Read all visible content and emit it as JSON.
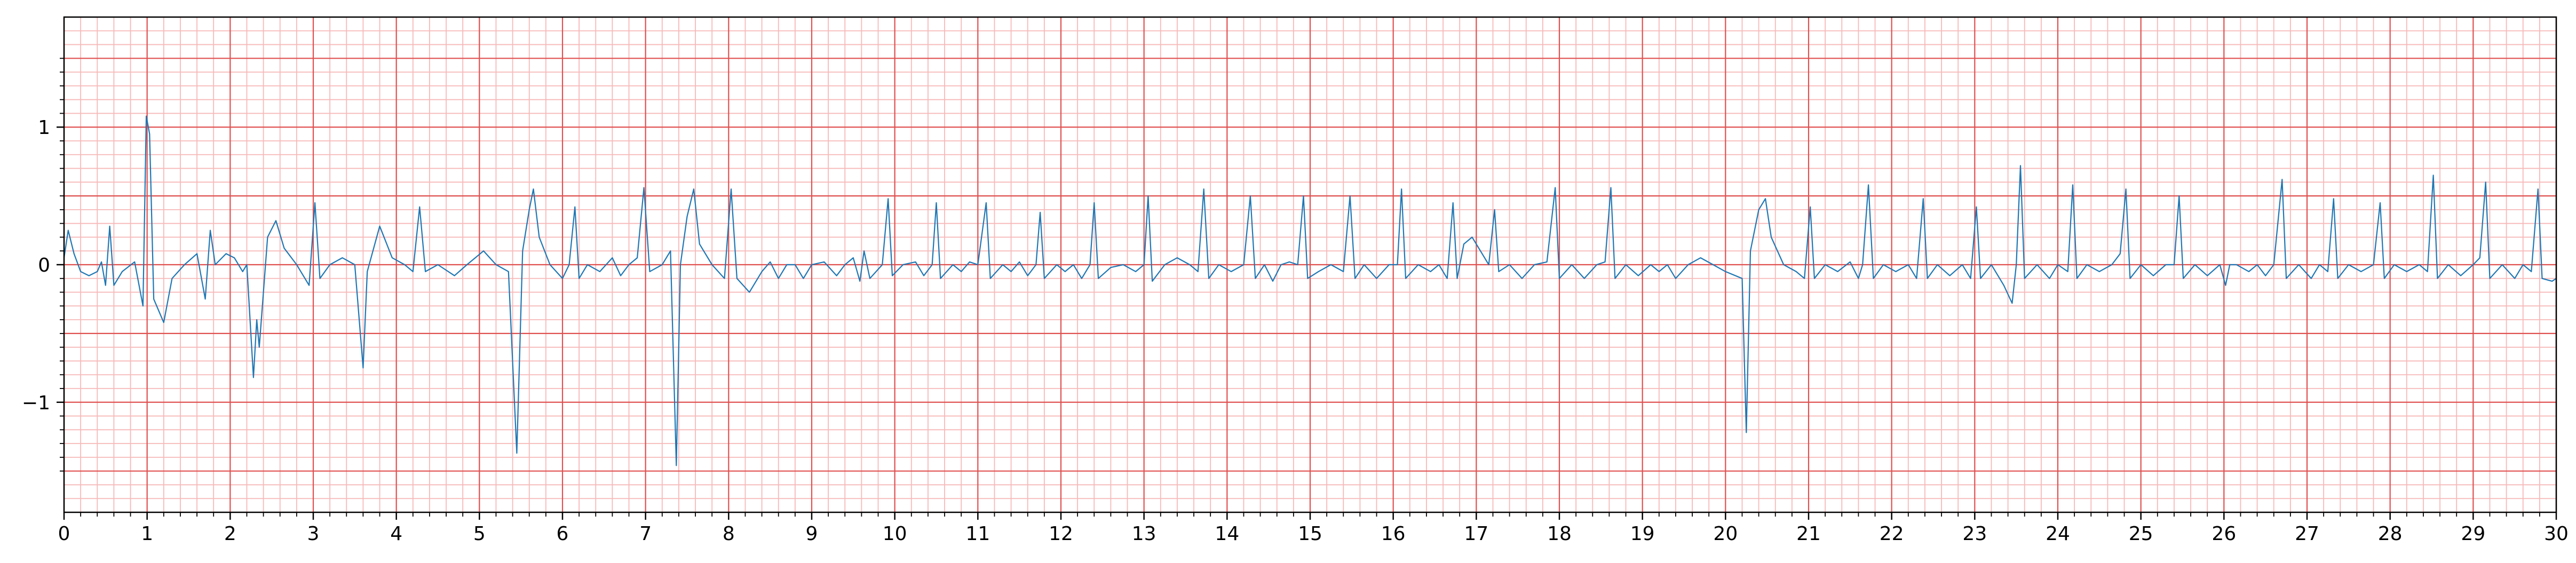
{
  "chart_data": {
    "type": "line",
    "title": "",
    "xlabel": "",
    "ylabel": "",
    "xlim": [
      0,
      30
    ],
    "ylim": [
      -1.8,
      1.8
    ],
    "grid": {
      "major": true,
      "minor": true,
      "major_x_step": 1,
      "minor_x_step": 0.2,
      "major_y_step": 0.5,
      "minor_y_step": 0.1
    },
    "x_ticks": [
      0,
      1,
      2,
      3,
      4,
      5,
      6,
      7,
      8,
      9,
      10,
      11,
      12,
      13,
      14,
      15,
      16,
      17,
      18,
      19,
      20,
      21,
      22,
      23,
      24,
      25,
      26,
      27,
      28,
      29,
      30
    ],
    "x_tick_labels": [
      "0",
      "1",
      "2",
      "3",
      "4",
      "5",
      "6",
      "7",
      "8",
      "9",
      "10",
      "11",
      "12",
      "13",
      "14",
      "15",
      "16",
      "17",
      "18",
      "19",
      "20",
      "21",
      "22",
      "23",
      "24",
      "25",
      "26",
      "27",
      "28",
      "29",
      "30"
    ],
    "y_ticks": [
      -1,
      0,
      1
    ],
    "y_tick_labels": [
      "−1",
      "0",
      "1"
    ],
    "colors": {
      "grid_major": "#e05050",
      "grid_minor": "#f7b8b8",
      "line": "#1f77b4",
      "axes": "#000000"
    },
    "series": [
      {
        "values": [
          [
            0.0,
            0.05
          ],
          [
            0.05,
            0.25
          ],
          [
            0.12,
            0.08
          ],
          [
            0.2,
            -0.05
          ],
          [
            0.3,
            -0.08
          ],
          [
            0.4,
            -0.05
          ],
          [
            0.45,
            0.02
          ],
          [
            0.5,
            -0.15
          ],
          [
            0.55,
            0.28
          ],
          [
            0.6,
            -0.15
          ],
          [
            0.7,
            -0.05
          ],
          [
            0.85,
            0.02
          ],
          [
            0.95,
            -0.3
          ],
          [
            0.99,
            1.08
          ],
          [
            1.03,
            0.95
          ],
          [
            1.08,
            -0.25
          ],
          [
            1.2,
            -0.42
          ],
          [
            1.3,
            -0.1
          ],
          [
            1.45,
            0.0
          ],
          [
            1.6,
            0.08
          ],
          [
            1.7,
            -0.25
          ],
          [
            1.76,
            0.25
          ],
          [
            1.82,
            0.0
          ],
          [
            1.95,
            0.08
          ],
          [
            2.05,
            0.05
          ],
          [
            2.15,
            -0.05
          ],
          [
            2.2,
            0.0
          ],
          [
            2.28,
            -0.82
          ],
          [
            2.32,
            -0.4
          ],
          [
            2.35,
            -0.6
          ],
          [
            2.45,
            0.2
          ],
          [
            2.55,
            0.32
          ],
          [
            2.65,
            0.12
          ],
          [
            2.8,
            0.0
          ],
          [
            2.95,
            -0.15
          ],
          [
            3.02,
            0.45
          ],
          [
            3.08,
            -0.1
          ],
          [
            3.2,
            0.0
          ],
          [
            3.35,
            0.05
          ],
          [
            3.5,
            0.0
          ],
          [
            3.6,
            -0.75
          ],
          [
            3.65,
            -0.05
          ],
          [
            3.8,
            0.28
          ],
          [
            3.95,
            0.05
          ],
          [
            4.1,
            0.0
          ],
          [
            4.2,
            -0.05
          ],
          [
            4.28,
            0.42
          ],
          [
            4.35,
            -0.05
          ],
          [
            4.5,
            0.0
          ],
          [
            4.7,
            -0.08
          ],
          [
            4.85,
            0.0
          ],
          [
            5.05,
            0.1
          ],
          [
            5.2,
            0.0
          ],
          [
            5.35,
            -0.05
          ],
          [
            5.45,
            -1.37
          ],
          [
            5.52,
            0.1
          ],
          [
            5.6,
            0.4
          ],
          [
            5.65,
            0.55
          ],
          [
            5.72,
            0.2
          ],
          [
            5.85,
            0.0
          ],
          [
            6.0,
            -0.1
          ],
          [
            6.08,
            0.0
          ],
          [
            6.15,
            0.42
          ],
          [
            6.2,
            -0.1
          ],
          [
            6.3,
            0.0
          ],
          [
            6.45,
            -0.05
          ],
          [
            6.6,
            0.05
          ],
          [
            6.7,
            -0.08
          ],
          [
            6.8,
            0.0
          ],
          [
            6.9,
            0.05
          ],
          [
            6.98,
            0.56
          ],
          [
            7.05,
            -0.05
          ],
          [
            7.2,
            0.0
          ],
          [
            7.3,
            0.1
          ],
          [
            7.37,
            -1.46
          ],
          [
            7.42,
            0.0
          ],
          [
            7.5,
            0.35
          ],
          [
            7.58,
            0.55
          ],
          [
            7.65,
            0.15
          ],
          [
            7.8,
            0.0
          ],
          [
            7.95,
            -0.1
          ],
          [
            8.03,
            0.55
          ],
          [
            8.1,
            -0.1
          ],
          [
            8.25,
            -0.2
          ],
          [
            8.4,
            -0.05
          ],
          [
            8.5,
            0.02
          ],
          [
            8.6,
            -0.1
          ],
          [
            8.7,
            0.0
          ],
          [
            8.8,
            0.0
          ],
          [
            8.9,
            -0.1
          ],
          [
            9.0,
            0.0
          ],
          [
            9.15,
            0.02
          ],
          [
            9.3,
            -0.08
          ],
          [
            9.4,
            0.0
          ],
          [
            9.5,
            0.05
          ],
          [
            9.58,
            -0.12
          ],
          [
            9.63,
            0.1
          ],
          [
            9.7,
            -0.1
          ],
          [
            9.85,
            0.0
          ],
          [
            9.92,
            0.48
          ],
          [
            9.97,
            -0.08
          ],
          [
            10.1,
            0.0
          ],
          [
            10.25,
            0.02
          ],
          [
            10.35,
            -0.08
          ],
          [
            10.45,
            0.0
          ],
          [
            10.5,
            0.45
          ],
          [
            10.55,
            -0.1
          ],
          [
            10.7,
            0.0
          ],
          [
            10.8,
            -0.05
          ],
          [
            10.9,
            0.02
          ],
          [
            11.0,
            0.0
          ],
          [
            11.1,
            0.45
          ],
          [
            11.15,
            -0.1
          ],
          [
            11.3,
            0.0
          ],
          [
            11.4,
            -0.05
          ],
          [
            11.5,
            0.02
          ],
          [
            11.6,
            -0.08
          ],
          [
            11.7,
            0.0
          ],
          [
            11.75,
            0.38
          ],
          [
            11.8,
            -0.1
          ],
          [
            11.95,
            0.0
          ],
          [
            12.05,
            -0.05
          ],
          [
            12.15,
            0.0
          ],
          [
            12.25,
            -0.1
          ],
          [
            12.35,
            0.0
          ],
          [
            12.4,
            0.45
          ],
          [
            12.45,
            -0.1
          ],
          [
            12.6,
            -0.02
          ],
          [
            12.75,
            0.0
          ],
          [
            12.9,
            -0.05
          ],
          [
            13.0,
            0.0
          ],
          [
            13.05,
            0.5
          ],
          [
            13.1,
            -0.12
          ],
          [
            13.25,
            0.0
          ],
          [
            13.4,
            0.05
          ],
          [
            13.55,
            0.0
          ],
          [
            13.65,
            -0.05
          ],
          [
            13.72,
            0.55
          ],
          [
            13.78,
            -0.1
          ],
          [
            13.9,
            0.0
          ],
          [
            14.05,
            -0.05
          ],
          [
            14.2,
            0.0
          ],
          [
            14.28,
            0.5
          ],
          [
            14.34,
            -0.1
          ],
          [
            14.45,
            0.0
          ],
          [
            14.55,
            -0.12
          ],
          [
            14.65,
            0.0
          ],
          [
            14.75,
            0.02
          ],
          [
            14.85,
            0.0
          ],
          [
            14.92,
            0.5
          ],
          [
            14.97,
            -0.1
          ],
          [
            15.1,
            -0.05
          ],
          [
            15.25,
            0.0
          ],
          [
            15.4,
            -0.05
          ],
          [
            15.48,
            0.5
          ],
          [
            15.54,
            -0.1
          ],
          [
            15.65,
            0.0
          ],
          [
            15.8,
            -0.1
          ],
          [
            15.95,
            0.0
          ],
          [
            16.05,
            0.0
          ],
          [
            16.1,
            0.55
          ],
          [
            16.15,
            -0.1
          ],
          [
            16.3,
            0.0
          ],
          [
            16.45,
            -0.05
          ],
          [
            16.55,
            0.0
          ],
          [
            16.65,
            -0.1
          ],
          [
            16.72,
            0.45
          ],
          [
            16.77,
            -0.1
          ],
          [
            16.85,
            0.15
          ],
          [
            16.95,
            0.2
          ],
          [
            17.05,
            0.1
          ],
          [
            17.15,
            0.0
          ],
          [
            17.22,
            0.4
          ],
          [
            17.27,
            -0.05
          ],
          [
            17.4,
            0.0
          ],
          [
            17.55,
            -0.1
          ],
          [
            17.7,
            0.0
          ],
          [
            17.85,
            0.02
          ],
          [
            17.95,
            0.56
          ],
          [
            18.0,
            -0.1
          ],
          [
            18.15,
            0.0
          ],
          [
            18.3,
            -0.1
          ],
          [
            18.45,
            0.0
          ],
          [
            18.55,
            0.02
          ],
          [
            18.62,
            0.56
          ],
          [
            18.67,
            -0.1
          ],
          [
            18.8,
            0.0
          ],
          [
            18.95,
            -0.08
          ],
          [
            19.1,
            0.0
          ],
          [
            19.2,
            -0.05
          ],
          [
            19.3,
            0.0
          ],
          [
            19.4,
            -0.1
          ],
          [
            19.55,
            0.0
          ],
          [
            19.7,
            0.05
          ],
          [
            19.85,
            0.0
          ],
          [
            20.0,
            -0.05
          ],
          [
            20.2,
            -0.1
          ],
          [
            20.25,
            -1.22
          ],
          [
            20.3,
            0.1
          ],
          [
            20.4,
            0.4
          ],
          [
            20.48,
            0.48
          ],
          [
            20.55,
            0.2
          ],
          [
            20.7,
            0.0
          ],
          [
            20.85,
            -0.05
          ],
          [
            20.95,
            -0.1
          ],
          [
            21.02,
            0.42
          ],
          [
            21.07,
            -0.1
          ],
          [
            21.2,
            0.0
          ],
          [
            21.35,
            -0.05
          ],
          [
            21.5,
            0.02
          ],
          [
            21.6,
            -0.1
          ],
          [
            21.65,
            0.0
          ],
          [
            21.72,
            0.58
          ],
          [
            21.78,
            -0.1
          ],
          [
            21.9,
            0.0
          ],
          [
            22.05,
            -0.05
          ],
          [
            22.2,
            0.0
          ],
          [
            22.3,
            -0.1
          ],
          [
            22.38,
            0.48
          ],
          [
            22.43,
            -0.1
          ],
          [
            22.55,
            0.0
          ],
          [
            22.7,
            -0.08
          ],
          [
            22.85,
            0.0
          ],
          [
            22.95,
            -0.1
          ],
          [
            23.02,
            0.42
          ],
          [
            23.07,
            -0.1
          ],
          [
            23.2,
            0.0
          ],
          [
            23.35,
            -0.15
          ],
          [
            23.45,
            -0.28
          ],
          [
            23.5,
            0.0
          ],
          [
            23.55,
            0.72
          ],
          [
            23.6,
            -0.1
          ],
          [
            23.75,
            0.0
          ],
          [
            23.9,
            -0.1
          ],
          [
            24.0,
            0.0
          ],
          [
            24.12,
            -0.05
          ],
          [
            24.18,
            0.58
          ],
          [
            24.23,
            -0.1
          ],
          [
            24.35,
            0.0
          ],
          [
            24.5,
            -0.05
          ],
          [
            24.65,
            0.0
          ],
          [
            24.75,
            0.08
          ],
          [
            24.82,
            0.55
          ],
          [
            24.87,
            -0.1
          ],
          [
            25.0,
            0.0
          ],
          [
            25.15,
            -0.08
          ],
          [
            25.3,
            0.0
          ],
          [
            25.4,
            0.0
          ],
          [
            25.46,
            0.5
          ],
          [
            25.51,
            -0.1
          ],
          [
            25.65,
            0.0
          ],
          [
            25.8,
            -0.08
          ],
          [
            25.95,
            0.0
          ],
          [
            26.02,
            -0.15
          ],
          [
            26.07,
            0.0
          ],
          [
            26.15,
            0.0
          ],
          [
            26.3,
            -0.05
          ],
          [
            26.4,
            0.0
          ],
          [
            26.5,
            -0.08
          ],
          [
            26.6,
            0.0
          ],
          [
            26.7,
            0.62
          ],
          [
            26.75,
            -0.1
          ],
          [
            26.9,
            0.0
          ],
          [
            27.05,
            -0.1
          ],
          [
            27.15,
            0.0
          ],
          [
            27.25,
            -0.05
          ],
          [
            27.32,
            0.48
          ],
          [
            27.37,
            -0.1
          ],
          [
            27.5,
            0.0
          ],
          [
            27.65,
            -0.05
          ],
          [
            27.8,
            0.0
          ],
          [
            27.88,
            0.45
          ],
          [
            27.93,
            -0.1
          ],
          [
            28.05,
            0.0
          ],
          [
            28.2,
            -0.05
          ],
          [
            28.35,
            0.0
          ],
          [
            28.45,
            -0.05
          ],
          [
            28.52,
            0.65
          ],
          [
            28.57,
            -0.1
          ],
          [
            28.7,
            0.0
          ],
          [
            28.85,
            -0.08
          ],
          [
            29.0,
            0.0
          ],
          [
            29.08,
            0.05
          ],
          [
            29.15,
            0.6
          ],
          [
            29.2,
            -0.1
          ],
          [
            29.35,
            0.0
          ],
          [
            29.5,
            -0.1
          ],
          [
            29.6,
            0.0
          ],
          [
            29.7,
            -0.05
          ],
          [
            29.78,
            0.55
          ],
          [
            29.83,
            -0.1
          ],
          [
            29.95,
            -0.12
          ],
          [
            30.0,
            -0.1
          ]
        ]
      }
    ]
  }
}
